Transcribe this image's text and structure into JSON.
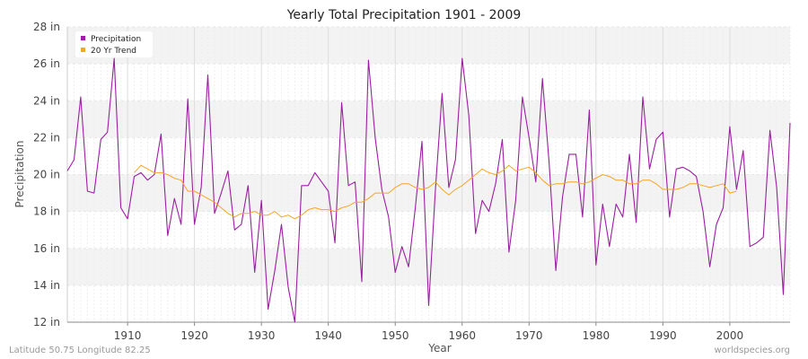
{
  "chart_data": {
    "type": "line",
    "title": "Yearly Total Precipitation 1901 - 2009",
    "xlabel": "Year",
    "ylabel": "Precipitation",
    "xlim": [
      1901,
      2009
    ],
    "ylim": [
      12,
      28
    ],
    "x_ticks": [
      1910,
      1920,
      1930,
      1940,
      1950,
      1960,
      1970,
      1980,
      1990,
      2000
    ],
    "y_ticks": [
      12,
      14,
      16,
      18,
      20,
      22,
      24,
      26,
      28
    ],
    "y_tick_suffix": " in",
    "legend_position": "top-left",
    "series": [
      {
        "name": "Precipitation",
        "color": "#9b1fa0",
        "x_start": 1901,
        "values": [
          20.2,
          20.8,
          24.2,
          19.1,
          19.0,
          21.9,
          22.3,
          26.3,
          18.2,
          17.6,
          19.9,
          20.1,
          19.7,
          20.0,
          22.2,
          16.7,
          18.7,
          17.3,
          24.1,
          17.3,
          19.3,
          25.4,
          17.9,
          19.0,
          20.2,
          17.0,
          17.3,
          19.4,
          14.7,
          18.6,
          12.7,
          14.8,
          17.3,
          13.9,
          12.0,
          19.4,
          19.4,
          20.1,
          19.6,
          19.1,
          16.3,
          23.9,
          19.4,
          19.6,
          14.2,
          26.2,
          22.0,
          19.2,
          17.7,
          14.7,
          16.1,
          15.0,
          18.2,
          21.8,
          12.9,
          19.2,
          24.4,
          19.3,
          20.8,
          26.3,
          23.2,
          16.8,
          18.6,
          18.0,
          19.5,
          21.9,
          15.8,
          18.6,
          24.2,
          22.0,
          19.6,
          25.2,
          20.6,
          14.8,
          18.8,
          21.1,
          21.1,
          17.7,
          23.5,
          15.1,
          18.4,
          16.1,
          18.4,
          17.7,
          21.1,
          17.4,
          24.2,
          20.3,
          21.9,
          22.3,
          17.7,
          20.3,
          20.4,
          20.2,
          19.9,
          18.0,
          15.0,
          17.3,
          18.2,
          22.6,
          19.2,
          21.3,
          16.1,
          16.3,
          16.6,
          22.4,
          19.3,
          13.5,
          22.8
        ]
      },
      {
        "name": "20 Yr Trend",
        "color": "#f5a623",
        "x_start": 1911,
        "values": [
          20.1,
          20.5,
          20.3,
          20.1,
          20.1,
          20.0,
          19.8,
          19.7,
          19.1,
          19.1,
          18.9,
          18.7,
          18.5,
          18.2,
          17.9,
          17.7,
          17.9,
          17.9,
          18.0,
          17.8,
          17.8,
          18.0,
          17.7,
          17.8,
          17.6,
          17.8,
          18.1,
          18.2,
          18.1,
          18.1,
          18.0,
          18.2,
          18.3,
          18.5,
          18.5,
          18.7,
          19.0,
          19.0,
          19.0,
          19.3,
          19.5,
          19.5,
          19.3,
          19.2,
          19.3,
          19.6,
          19.2,
          18.9,
          19.2,
          19.4,
          19.7,
          20.0,
          20.3,
          20.1,
          20.0,
          20.2,
          20.5,
          20.2,
          20.3,
          20.4,
          20.1,
          19.7,
          19.4,
          19.5,
          19.5,
          19.6,
          19.6,
          19.5,
          19.6,
          19.8,
          20.0,
          19.9,
          19.7,
          19.7,
          19.5,
          19.5,
          19.7,
          19.7,
          19.5,
          19.2,
          19.2,
          19.2,
          19.3,
          19.5,
          19.5,
          19.4,
          19.3,
          19.4,
          19.5,
          19.0,
          19.1
        ]
      }
    ]
  },
  "footer": {
    "location": "Latitude 50.75 Longitude 82.25",
    "source": "worldspecies.org"
  }
}
